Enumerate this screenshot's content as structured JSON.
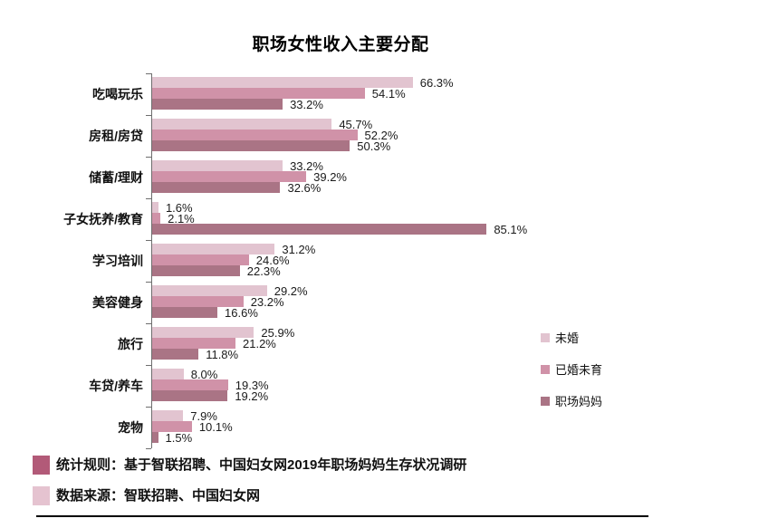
{
  "title": "职场女性收入主要分配",
  "chart_data": {
    "type": "bar",
    "orientation": "horizontal",
    "title": "职场女性收入主要分配",
    "categories": [
      "吃喝玩乐",
      "房租/房贷",
      "储蓄/理财",
      "子女抚养/教育",
      "学习培训",
      "美容健身",
      "旅行",
      "车贷/养车",
      "宠物"
    ],
    "series": [
      {
        "name": "未婚",
        "color": "#e2c4d0",
        "values": [
          66.3,
          45.7,
          33.2,
          1.6,
          31.2,
          29.2,
          25.9,
          8.0,
          7.9
        ],
        "labels": [
          "66.3%",
          "45.7%",
          "33.2%",
          "1.6%",
          "31.2%",
          "29.2%",
          "25.9%",
          "8.0%",
          "7.9%"
        ]
      },
      {
        "name": "已婚未育",
        "color": "#d092a8",
        "values": [
          54.1,
          52.2,
          39.2,
          2.1,
          24.6,
          23.2,
          21.2,
          19.3,
          10.1
        ],
        "labels": [
          "54.1%",
          "52.2%",
          "39.2%",
          "2.1%",
          "24.6%",
          "23.2%",
          "21.2%",
          "19.3%",
          "10.1%"
        ]
      },
      {
        "name": "职场妈妈",
        "color": "#aa7485",
        "values": [
          33.2,
          50.3,
          32.6,
          85.1,
          22.3,
          16.6,
          11.8,
          19.2,
          1.5
        ],
        "labels": [
          "33.2%",
          "50.3%",
          "32.6%",
          "85.1%",
          "22.3%",
          "16.6%",
          "11.8%",
          "19.2%",
          "1.5%"
        ]
      }
    ],
    "xlim": [
      0,
      100
    ],
    "value_suffix": "%",
    "data_labels": true,
    "grid": false,
    "legend_position": "right"
  },
  "legend": {
    "items": [
      "未婚",
      "已婚未育",
      "职场妈妈"
    ]
  },
  "footer": {
    "stat_rule": "统计规则：基于智联招聘、中国妇女网2019年职场妈妈生存状况调研",
    "data_source": "数据来源：智联招聘、中国妇女网",
    "stat_marker_color": "#b25a78",
    "source_marker_color": "#e5c3d0"
  },
  "colors": {
    "axis": "#6e6e6e",
    "text": "#111111",
    "divider": "#000000"
  }
}
